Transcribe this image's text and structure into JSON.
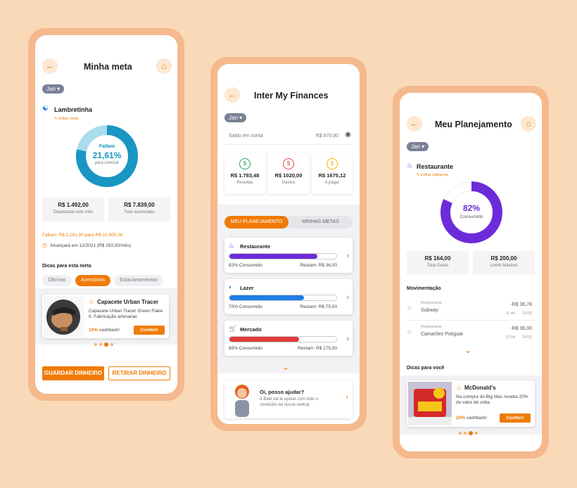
{
  "left": {
    "title": "Minha meta",
    "month": "Jan",
    "goal_name": "Lambretinha",
    "edit_label": "Editar meta",
    "donut": {
      "label": "Faltam",
      "percent": "21,61%",
      "sub": "para concluir",
      "fraction": 0.2161,
      "color": "#1996c3",
      "track": "#a9dcee"
    },
    "deposited": {
      "value": "R$ 1.492,00",
      "label": "Depositado este mês"
    },
    "accumulated": {
      "value": "R$ 7.839,00",
      "label": "Total acumulado"
    },
    "missing_text": "Faltam: R$ 2.161,00 para R$ 10.000,00",
    "reach_text": "Alcançará em 12/2021 (R$ 250,00/mês)",
    "tips_title": "Dicas para esta meta",
    "tabs": [
      "Oficinas",
      "Acessórios",
      "Estacionamentos"
    ],
    "product": {
      "name": "Capacete Urban Tracer",
      "desc": "Capacete Urban Tracer Green Flake II. Fabricação artesanal.",
      "cashback": "10%",
      "cashback_label": "cashback!",
      "cta": "Conferir"
    },
    "save_btn": "GUARDAR DINHEIRO",
    "withdraw_btn": "RETIRAR DINHEIRO"
  },
  "middle": {
    "title": "Inter My Finances",
    "month": "Jan",
    "balance_label": "Saldo em conta",
    "balance_value": "R$ 870,00",
    "summary": [
      {
        "value": "R$ 1.783,48",
        "label": "Receitas",
        "color": "#2e9e5e"
      },
      {
        "value": "R$ 1020,00",
        "label": "Gastos",
        "color": "#e24a4a"
      },
      {
        "value": "R$ 1675,12",
        "label": "A pagar",
        "color": "#e6b800"
      }
    ],
    "tabs": [
      "MEU PLANEJAMENTO",
      "MINHAS METAS"
    ],
    "plans": [
      {
        "name": "Restaurante",
        "consumed": "82% Consumido",
        "remaining": "Restam: R$ 36,00",
        "fraction": 0.82,
        "color": "#6c2bd9"
      },
      {
        "name": "Lazer",
        "consumed": "70% Consumido",
        "remaining": "Restam: R$ 75,00",
        "fraction": 0.7,
        "color": "#1e7ee8"
      },
      {
        "name": "Mercado",
        "consumed": "65% Consumido",
        "remaining": "Restam: R$ 175,00",
        "fraction": 0.65,
        "color": "#e03a3a"
      }
    ],
    "help_title": "Oi, posso ajudar?",
    "help_text": "A Babi vai te ajudar com todo o conteúdo da nossa central"
  },
  "right": {
    "title": "Meu Planejamento",
    "month": "Jan",
    "category": "Restaurante",
    "edit_label": "Editar categoria",
    "donut": {
      "percent": "82%",
      "sub": "Consumido",
      "fraction": 0.82,
      "color": "#6c2bd9",
      "track": "#fff"
    },
    "spent": {
      "value": "R$ 164,00",
      "label": "Total Gasto"
    },
    "limit": {
      "value": "R$ 200,00",
      "label": "Limite Máximo"
    },
    "movements_title": "Movimentação",
    "movements": [
      {
        "category": "Restaurante",
        "place": "Subway",
        "amount": "-R$ 36,78",
        "time": "11:44",
        "date": "31/01"
      },
      {
        "category": "Restaurante",
        "place": "Camarões Potiguar",
        "amount": "-R$ 36,00",
        "time": "12:54",
        "date": "20/01"
      }
    ],
    "tips_title": "Dicas para você",
    "offer": {
      "name": "McDonald's",
      "desc": "Na compra do Big Mac receba 20% do valor de volta.",
      "cashback": "20%",
      "cashback_label": "cashback!",
      "cta": "Conferir"
    }
  }
}
